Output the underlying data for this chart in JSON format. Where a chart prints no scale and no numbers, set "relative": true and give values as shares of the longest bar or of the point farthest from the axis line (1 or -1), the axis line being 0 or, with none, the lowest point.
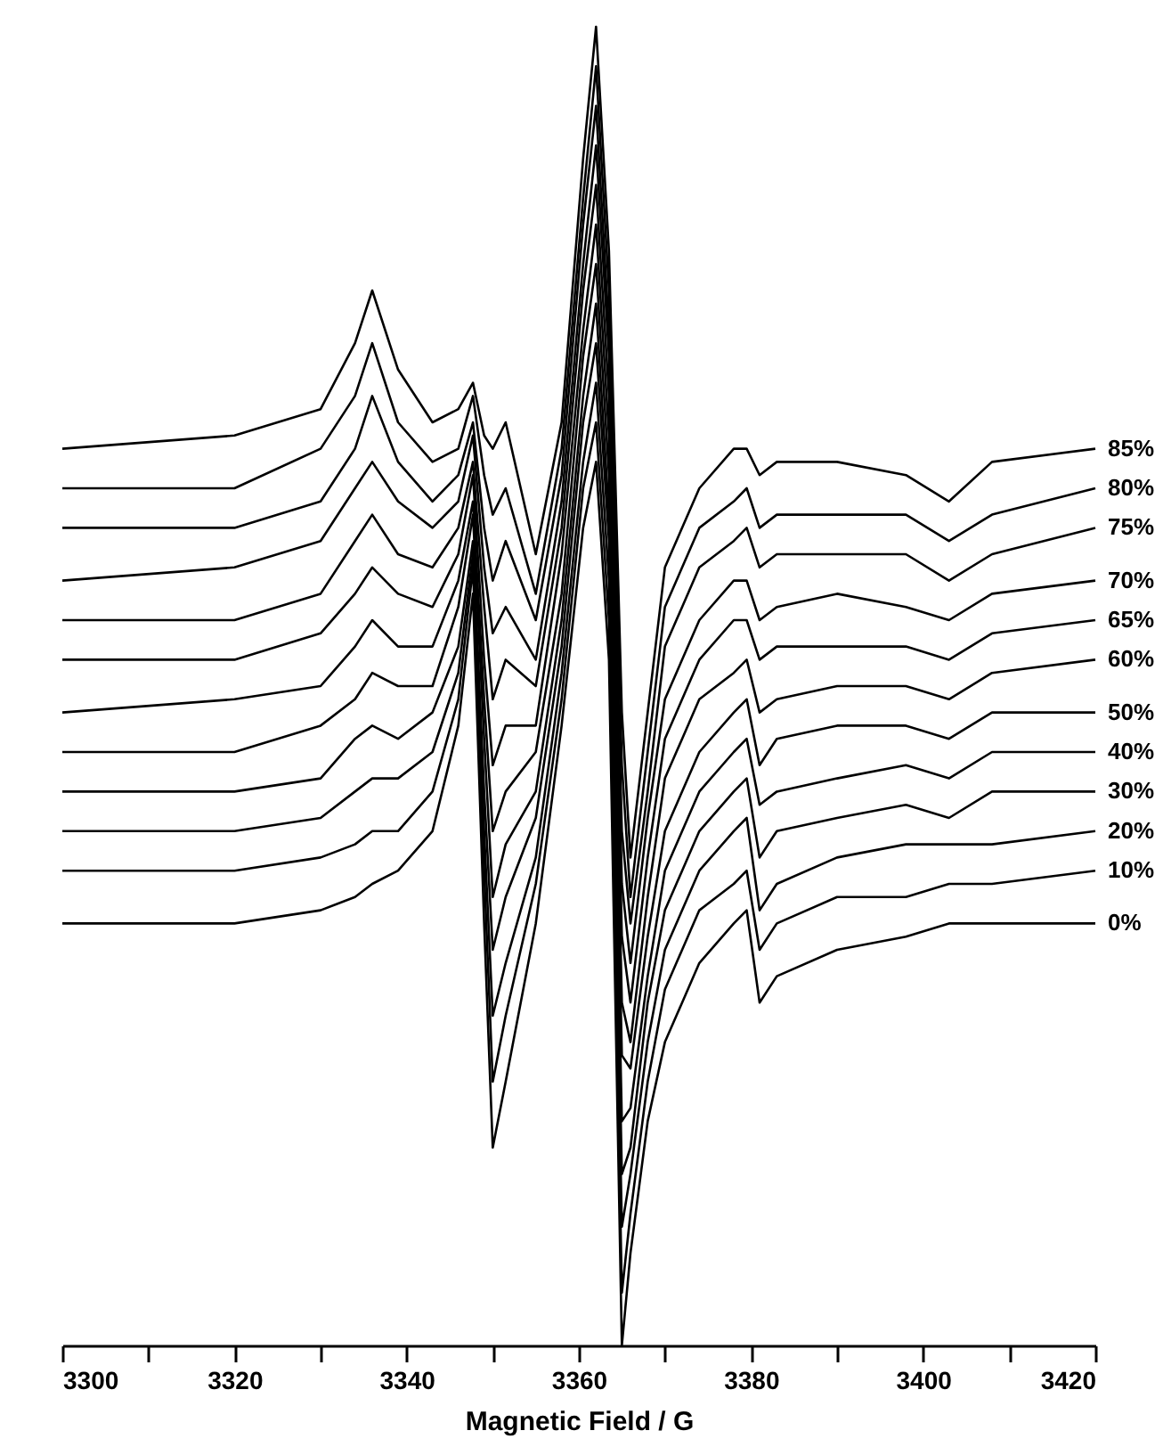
{
  "chart_data": {
    "type": "line",
    "relative": true,
    "xlabel": "Magnetic Field / G",
    "x": [
      3300,
      3320,
      3330,
      3334,
      3336,
      3339,
      3343,
      3346,
      3347.7,
      3349,
      3350,
      3351.5,
      3355,
      3358,
      3360.5,
      3362,
      3363.5,
      3365,
      3366,
      3368,
      3370,
      3374,
      3378,
      3379.5,
      3381,
      3383,
      3390,
      3398,
      3403,
      3408,
      3420
    ],
    "xlim": [
      3300,
      3420
    ],
    "xticks": [
      3300,
      {
        "value": 3310,
        "label": null
      },
      3320,
      {
        "value": 3330,
        "label": null
      },
      3340,
      {
        "value": 3350,
        "label": null
      },
      3360,
      {
        "value": 3370,
        "label": null
      },
      3380,
      {
        "value": 3390,
        "label": null
      },
      3400,
      {
        "value": 3410,
        "label": null
      },
      3420
    ],
    "grid": false,
    "tick_labels": "x",
    "series": [
      {
        "name": "85%",
        "color": "#000000",
        "values": [
          0.68,
          0.69,
          0.71,
          0.76,
          0.8,
          0.74,
          0.7,
          0.71,
          0.73,
          0.69,
          0.68,
          0.7,
          0.6,
          0.7,
          0.9,
          1.0,
          0.83,
          0.48,
          0.37,
          0.48,
          0.59,
          0.65,
          0.68,
          0.68,
          0.66,
          0.67,
          0.67,
          0.66,
          0.64,
          0.67,
          0.68
        ]
      },
      {
        "name": "80%",
        "color": "#000000",
        "values": [
          0.65,
          0.65,
          0.68,
          0.72,
          0.76,
          0.7,
          0.67,
          0.68,
          0.72,
          0.66,
          0.63,
          0.65,
          0.57,
          0.68,
          0.87,
          0.97,
          0.8,
          0.44,
          0.34,
          0.45,
          0.56,
          0.62,
          0.64,
          0.65,
          0.62,
          0.63,
          0.63,
          0.63,
          0.61,
          0.63,
          0.65
        ]
      },
      {
        "name": "75%",
        "color": "#000000",
        "values": [
          0.62,
          0.62,
          0.64,
          0.68,
          0.72,
          0.67,
          0.64,
          0.66,
          0.7,
          0.62,
          0.58,
          0.61,
          0.55,
          0.66,
          0.85,
          0.94,
          0.77,
          0.39,
          0.32,
          0.42,
          0.53,
          0.59,
          0.61,
          0.62,
          0.59,
          0.6,
          0.6,
          0.6,
          0.58,
          0.6,
          0.62
        ]
      },
      {
        "name": "70%",
        "color": "#000000",
        "values": [
          0.58,
          0.59,
          0.61,
          0.65,
          0.67,
          0.64,
          0.62,
          0.64,
          0.69,
          0.59,
          0.54,
          0.56,
          0.52,
          0.64,
          0.82,
          0.91,
          0.75,
          0.35,
          0.29,
          0.4,
          0.49,
          0.55,
          0.58,
          0.58,
          0.55,
          0.56,
          0.57,
          0.56,
          0.55,
          0.57,
          0.58
        ]
      },
      {
        "name": "65%",
        "color": "#000000",
        "values": [
          0.55,
          0.55,
          0.57,
          0.61,
          0.63,
          0.6,
          0.59,
          0.62,
          0.67,
          0.56,
          0.49,
          0.52,
          0.5,
          0.62,
          0.8,
          0.88,
          0.72,
          0.31,
          0.26,
          0.37,
          0.46,
          0.52,
          0.55,
          0.55,
          0.52,
          0.53,
          0.53,
          0.53,
          0.52,
          0.54,
          0.55
        ]
      },
      {
        "name": "60%",
        "color": "#000000",
        "values": [
          0.52,
          0.52,
          0.54,
          0.57,
          0.59,
          0.57,
          0.56,
          0.6,
          0.66,
          0.52,
          0.44,
          0.47,
          0.47,
          0.6,
          0.77,
          0.85,
          0.69,
          0.26,
          0.23,
          0.34,
          0.43,
          0.49,
          0.51,
          0.52,
          0.48,
          0.49,
          0.5,
          0.5,
          0.49,
          0.51,
          0.52
        ]
      },
      {
        "name": "50%",
        "color": "#000000",
        "values": [
          0.48,
          0.49,
          0.5,
          0.53,
          0.55,
          0.53,
          0.53,
          0.58,
          0.64,
          0.49,
          0.39,
          0.42,
          0.45,
          0.57,
          0.75,
          0.82,
          0.66,
          0.22,
          0.21,
          0.31,
          0.39,
          0.45,
          0.48,
          0.49,
          0.44,
          0.46,
          0.47,
          0.47,
          0.46,
          0.48,
          0.48
        ]
      },
      {
        "name": "40%",
        "color": "#000000",
        "values": [
          0.45,
          0.45,
          0.47,
          0.49,
          0.51,
          0.5,
          0.5,
          0.56,
          0.63,
          0.46,
          0.34,
          0.38,
          0.42,
          0.55,
          0.72,
          0.79,
          0.63,
          0.17,
          0.18,
          0.28,
          0.36,
          0.42,
          0.45,
          0.46,
          0.41,
          0.42,
          0.43,
          0.44,
          0.43,
          0.45,
          0.45
        ]
      },
      {
        "name": "30%",
        "color": "#000000",
        "values": [
          0.42,
          0.42,
          0.43,
          0.46,
          0.47,
          0.46,
          0.48,
          0.53,
          0.61,
          0.42,
          0.3,
          0.34,
          0.4,
          0.53,
          0.7,
          0.76,
          0.61,
          0.13,
          0.15,
          0.26,
          0.33,
          0.39,
          0.42,
          0.43,
          0.37,
          0.39,
          0.4,
          0.41,
          0.4,
          0.42,
          0.42
        ]
      },
      {
        "name": "20%",
        "color": "#000000",
        "values": [
          0.39,
          0.39,
          0.4,
          0.42,
          0.43,
          0.43,
          0.45,
          0.51,
          0.6,
          0.39,
          0.25,
          0.29,
          0.37,
          0.51,
          0.67,
          0.73,
          0.58,
          0.09,
          0.13,
          0.23,
          0.3,
          0.36,
          0.39,
          0.4,
          0.33,
          0.35,
          0.37,
          0.38,
          0.38,
          0.38,
          0.39
        ]
      },
      {
        "name": "10%",
        "color": "#000000",
        "values": [
          0.36,
          0.36,
          0.37,
          0.38,
          0.39,
          0.39,
          0.42,
          0.49,
          0.59,
          0.36,
          0.2,
          0.25,
          0.35,
          0.49,
          0.65,
          0.7,
          0.55,
          0.04,
          0.1,
          0.2,
          0.27,
          0.33,
          0.35,
          0.36,
          0.3,
          0.32,
          0.34,
          0.34,
          0.35,
          0.35,
          0.36
        ]
      },
      {
        "name": "0%",
        "color": "#000000",
        "values": [
          0.32,
          0.32,
          0.33,
          0.34,
          0.35,
          0.36,
          0.39,
          0.47,
          0.57,
          0.32,
          0.15,
          0.2,
          0.32,
          0.47,
          0.62,
          0.67,
          0.52,
          0.0,
          0.07,
          0.17,
          0.23,
          0.29,
          0.32,
          0.33,
          0.26,
          0.28,
          0.3,
          0.31,
          0.32,
          0.32,
          0.32
        ]
      }
    ]
  }
}
